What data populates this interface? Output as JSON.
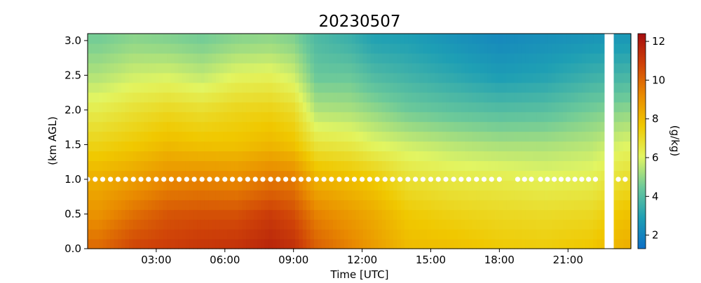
{
  "chart_data": {
    "type": "heatmap",
    "title": "20230507",
    "xlabel": "Time [UTC]",
    "ylabel": "(km AGL)",
    "colorbar_label": "(g/kg)",
    "x_unit": "hours UTC",
    "xlim": [
      0,
      23.75
    ],
    "ylim": [
      0.0,
      3.1
    ],
    "x_ticks": [
      3,
      6,
      9,
      12,
      15,
      18,
      21
    ],
    "x_tick_labels": [
      "03:00",
      "06:00",
      "09:00",
      "12:00",
      "15:00",
      "18:00",
      "21:00"
    ],
    "y_ticks": [
      0.0,
      0.5,
      1.0,
      1.5,
      2.0,
      2.5,
      3.0
    ],
    "y_tick_labels": [
      "0.0",
      "0.5",
      "1.0",
      "1.5",
      "2.0",
      "2.5",
      "3.0"
    ],
    "colorbar": {
      "min": 1.3,
      "max": 12.4,
      "ticks": [
        2,
        4,
        6,
        8,
        10,
        12
      ],
      "tick_labels": [
        "2",
        "4",
        "6",
        "8",
        "10",
        "12"
      ],
      "colormap": [
        "#0d6fc6",
        "#1e9fb4",
        "#6cc99a",
        "#e2f562",
        "#f0c800",
        "#e98a00",
        "#cf4208",
        "#a50d0f"
      ]
    },
    "levels_km": [
      0.0,
      0.5,
      1.0,
      1.5,
      2.0,
      2.5,
      3.0
    ],
    "profiles": [
      {
        "time": 0.5,
        "values": [
          10.0,
          9.0,
          8.3,
          7.3,
          6.4,
          5.4,
          4.6
        ]
      },
      {
        "time": 2.0,
        "values": [
          10.8,
          9.8,
          8.7,
          7.6,
          6.8,
          5.8,
          4.9
        ]
      },
      {
        "time": 3.5,
        "values": [
          11.0,
          10.4,
          9.2,
          8.0,
          7.1,
          5.9,
          4.8
        ]
      },
      {
        "time": 5.0,
        "values": [
          11.2,
          10.5,
          9.3,
          7.8,
          6.9,
          5.6,
          4.6
        ]
      },
      {
        "time": 6.5,
        "values": [
          11.3,
          10.5,
          9.2,
          7.8,
          7.2,
          6.1,
          4.9
        ]
      },
      {
        "time": 8.0,
        "values": [
          11.7,
          11.0,
          9.6,
          8.1,
          7.3,
          6.2,
          5.0
        ]
      },
      {
        "time": 9.0,
        "values": [
          11.4,
          10.6,
          9.5,
          7.8,
          7.0,
          5.8,
          4.8
        ]
      },
      {
        "time": 10.0,
        "values": [
          10.2,
          9.4,
          8.2,
          6.7,
          5.4,
          4.4,
          3.9
        ]
      },
      {
        "time": 11.5,
        "values": [
          9.4,
          8.8,
          7.9,
          6.5,
          5.3,
          4.4,
          3.5
        ]
      },
      {
        "time": 12.5,
        "values": [
          8.8,
          8.4,
          7.6,
          6.1,
          5.0,
          3.9,
          3.0
        ]
      },
      {
        "time": 14.0,
        "values": [
          8.0,
          7.6,
          6.8,
          5.8,
          4.5,
          3.6,
          2.9
        ]
      },
      {
        "time": 16.0,
        "values": [
          7.9,
          7.3,
          6.5,
          5.5,
          4.2,
          3.2,
          2.5
        ]
      },
      {
        "time": 18.0,
        "values": [
          7.6,
          7.1,
          6.4,
          5.3,
          4.0,
          2.8,
          2.2
        ]
      },
      {
        "time": 20.0,
        "values": [
          7.5,
          7.0,
          6.2,
          5.3,
          4.1,
          3.0,
          2.4
        ]
      },
      {
        "time": 22.0,
        "values": [
          7.7,
          7.1,
          6.3,
          5.5,
          4.6,
          3.5,
          2.6
        ]
      },
      {
        "time": 23.5,
        "values": [
          8.3,
          7.8,
          6.9,
          6.0,
          4.9,
          3.7,
          2.7
        ]
      }
    ],
    "missing_data_interval": [
      22.6,
      23.0
    ],
    "marker_height_km": 1.0,
    "marker_color": "#ffffff",
    "marker_times": [
      0.0,
      0.33,
      0.66,
      1.0,
      1.33,
      1.66,
      2.0,
      2.33,
      2.66,
      3.0,
      3.33,
      3.66,
      4.0,
      4.33,
      4.66,
      5.0,
      5.33,
      5.66,
      6.0,
      6.33,
      6.66,
      7.0,
      7.33,
      7.66,
      8.0,
      8.33,
      8.66,
      9.0,
      9.33,
      9.66,
      10.0,
      10.33,
      10.66,
      11.0,
      11.33,
      11.66,
      12.0,
      12.33,
      12.66,
      13.0,
      13.33,
      13.66,
      14.0,
      14.33,
      14.66,
      15.0,
      15.33,
      15.66,
      16.0,
      16.33,
      16.66,
      17.0,
      17.33,
      17.66,
      18.0,
      18.8,
      19.1,
      19.4,
      19.8,
      20.1,
      20.4,
      20.7,
      21.0,
      21.3,
      21.6,
      21.9,
      22.2,
      23.2,
      23.5
    ]
  }
}
